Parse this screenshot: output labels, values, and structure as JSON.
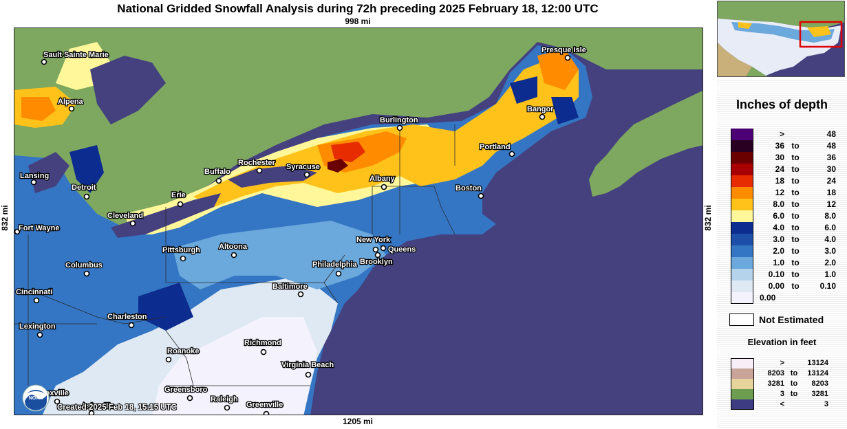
{
  "title": "National Gridded Snowfall Analysis during 72h preceding 2025 February 18, 12:00 UTC",
  "scale": {
    "top": "998 mi",
    "bottom": "1205 mi",
    "left": "832 mi",
    "right": "832 mi"
  },
  "created": "Created 2025 Feb 18, 15:15 UTC",
  "logo": {
    "name": "noaa-logo",
    "text": "NOAA"
  },
  "cities": [
    {
      "name": "Sault Sainte Marie"
    },
    {
      "name": "Alpena"
    },
    {
      "name": "Lansing"
    },
    {
      "name": "Detroit"
    },
    {
      "name": "Fort Wayne"
    },
    {
      "name": "Columbus"
    },
    {
      "name": "Cincinnati"
    },
    {
      "name": "Lexington"
    },
    {
      "name": "Charleston"
    },
    {
      "name": "Cleveland"
    },
    {
      "name": "Erie"
    },
    {
      "name": "Buffalo"
    },
    {
      "name": "Rochester"
    },
    {
      "name": "Syracuse"
    },
    {
      "name": "Pittsburgh"
    },
    {
      "name": "Altoona"
    },
    {
      "name": "Presque Isle"
    },
    {
      "name": "Bangor"
    },
    {
      "name": "Burlington"
    },
    {
      "name": "Portland"
    },
    {
      "name": "Albany"
    },
    {
      "name": "Boston"
    },
    {
      "name": "New York"
    },
    {
      "name": "Queens"
    },
    {
      "name": "Brooklyn"
    },
    {
      "name": "Philadelphia"
    },
    {
      "name": "Baltimore"
    },
    {
      "name": "Richmond"
    },
    {
      "name": "Roanoke"
    },
    {
      "name": "Virginia Beach"
    },
    {
      "name": "Greensboro"
    },
    {
      "name": "Raleigh"
    },
    {
      "name": "Greenville"
    },
    {
      "name": "Knoxville"
    },
    {
      "name": "Asheville"
    }
  ],
  "legend": {
    "title": "Inches of depth",
    "snow_ranges": [
      {
        "lo": ">",
        "to": "",
        "hi": "48",
        "color": "#4b0073"
      },
      {
        "lo": "36",
        "to": "to",
        "hi": "48",
        "color": "#2a0022"
      },
      {
        "lo": "30",
        "to": "to",
        "hi": "36",
        "color": "#6a0000"
      },
      {
        "lo": "24",
        "to": "to",
        "hi": "30",
        "color": "#a80000"
      },
      {
        "lo": "18",
        "to": "to",
        "hi": "24",
        "color": "#e62c00"
      },
      {
        "lo": "12",
        "to": "to",
        "hi": "18",
        "color": "#ff8c00"
      },
      {
        "lo": "8.0",
        "to": "to",
        "hi": "12",
        "color": "#ffc21a"
      },
      {
        "lo": "6.0",
        "to": "to",
        "hi": "8.0",
        "color": "#fff79a"
      },
      {
        "lo": "4.0",
        "to": "to",
        "hi": "6.0",
        "color": "#0d2c8f"
      },
      {
        "lo": "3.0",
        "to": "to",
        "hi": "4.0",
        "color": "#1d4ea8"
      },
      {
        "lo": "2.0",
        "to": "to",
        "hi": "3.0",
        "color": "#3476c4"
      },
      {
        "lo": "1.0",
        "to": "to",
        "hi": "2.0",
        "color": "#6ba8dc"
      },
      {
        "lo": "0.10",
        "to": "to",
        "hi": "1.0",
        "color": "#b5d3ea"
      },
      {
        "lo": "0.00",
        "to": "to",
        "hi": "0.10",
        "color": "#dfe9f3"
      },
      {
        "lo": "0.00",
        "to": "",
        "hi": "",
        "color": "#f4f2fc"
      }
    ],
    "not_estimated": "Not Estimated",
    "elevation_title": "Elevation in feet",
    "elevation_ranges": [
      {
        "lo": ">",
        "to": "",
        "hi": "13124",
        "color": "#f8eef8"
      },
      {
        "lo": "8203",
        "to": "to",
        "hi": "13124",
        "color": "#c9a49a"
      },
      {
        "lo": "3281",
        "to": "to",
        "hi": "8203",
        "color": "#e6d49c"
      },
      {
        "lo": "3",
        "to": "to",
        "hi": "3281",
        "color": "#6e9c50"
      },
      {
        "lo": "<",
        "to": "",
        "hi": "3",
        "color": "#3d3c82"
      }
    ]
  },
  "colors": {
    "ocean": "#45417f",
    "land": "#7ea75f",
    "noaa_blue": "#1a4fa0"
  }
}
